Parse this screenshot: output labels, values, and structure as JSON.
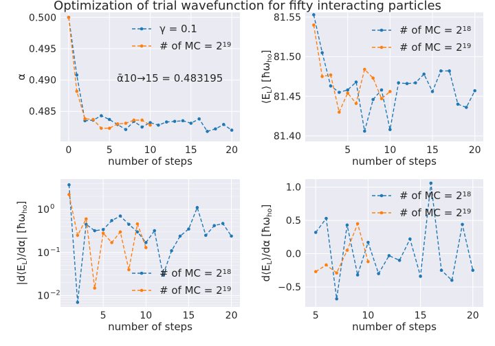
{
  "figure": {
    "title": "Optimization of trial wavefunction for fifty interacting particles",
    "colors": {
      "background": "#eaeaf2",
      "grid": "#ffffff",
      "text": "#262626",
      "blue": "#1f77b4",
      "orange": "#ff7f0e"
    }
  },
  "chart_data": [
    {
      "type": "line",
      "title": "",
      "xlabel": "number of steps",
      "ylabel": "α",
      "xlim": [
        -1,
        21
      ],
      "ylim": [
        0.4802,
        0.5008
      ],
      "xticks": [
        0,
        5,
        10,
        15,
        20
      ],
      "yticks": [
        0.48,
        0.485,
        0.49,
        0.495,
        0.5
      ],
      "ytick_labels": [
        "",
        "0.485",
        "0.490",
        "0.495",
        "0.500"
      ],
      "annotation": "ᾱ10→15 = 0.483195",
      "legend_position": "top-right",
      "series": [
        {
          "name": "γ = 0.1",
          "color": "#1f77b4",
          "x": [
            0,
            1,
            2,
            3,
            4,
            5,
            6,
            7,
            8,
            9,
            10,
            11,
            12,
            13,
            14,
            15,
            16,
            17,
            18,
            19,
            20
          ],
          "y": [
            0.5,
            0.4908,
            0.4835,
            0.4836,
            0.4843,
            0.4837,
            0.4829,
            0.4821,
            0.4834,
            0.4825,
            0.4832,
            0.4828,
            0.4833,
            0.4834,
            0.4835,
            0.4831,
            0.4838,
            0.4818,
            0.4822,
            0.4829,
            0.482
          ]
        },
        {
          "name": "# of MC = 2^19",
          "color": "#ff7f0e",
          "x": [
            0,
            1,
            2,
            3,
            4,
            5,
            6,
            7,
            8,
            9,
            10
          ],
          "y": [
            0.5,
            0.4882,
            0.4838,
            0.4837,
            0.4823,
            0.4823,
            0.483,
            0.4831,
            0.4836,
            0.4836,
            0.4828
          ]
        }
      ]
    },
    {
      "type": "line",
      "title": "",
      "xlabel": "number of steps",
      "ylabel": "⟨E_L⟩ [ħω_ho]",
      "xlim": [
        0,
        21
      ],
      "ylim": [
        81.393,
        81.556
      ],
      "xticks": [
        5,
        10,
        15,
        20
      ],
      "yticks": [
        81.4,
        81.45,
        81.5,
        81.55
      ],
      "ytick_labels": [
        "81.40",
        "81.45",
        "81.50",
        "81.55"
      ],
      "legend_position": "top-right",
      "series": [
        {
          "name": "# of MC = 2^18",
          "color": "#1f77b4",
          "x": [
            1,
            2,
            3,
            4,
            5,
            6,
            7,
            8,
            9,
            10,
            11,
            12,
            13,
            14,
            15,
            16,
            17,
            18,
            19,
            20
          ],
          "y": [
            81.553,
            81.505,
            81.463,
            81.455,
            81.458,
            81.468,
            81.406,
            81.446,
            81.458,
            81.408,
            81.467,
            81.466,
            81.467,
            81.478,
            81.456,
            81.482,
            81.482,
            81.44,
            81.436,
            81.457
          ]
        },
        {
          "name": "# of MC = 2^19",
          "color": "#ff7f0e",
          "x": [
            1,
            2,
            3,
            4,
            5,
            6,
            7,
            8,
            9,
            10
          ],
          "y": [
            81.54,
            81.475,
            81.477,
            81.43,
            81.454,
            81.441,
            81.484,
            81.473,
            81.447,
            81.456
          ]
        }
      ]
    },
    {
      "type": "line",
      "title": "",
      "xlabel": "number of steps",
      "ylabel": "|d⟨E_L⟩/dα| [ħω_ho]",
      "yscale": "log",
      "xlim": [
        0,
        21
      ],
      "ylim": [
        0.0055,
        5
      ],
      "xticks": [
        5,
        10,
        15,
        20
      ],
      "yticks": [
        0.01,
        0.1,
        1
      ],
      "ytick_labels": [
        "10",
        "10",
        "10"
      ],
      "ytick_exponents": [
        "−2",
        "−1",
        "0"
      ],
      "legend_position": "bottom-right",
      "series": [
        {
          "name": "# of MC = 2^18",
          "color": "#1f77b4",
          "x": [
            1,
            2,
            3,
            4,
            5,
            6,
            7,
            8,
            9,
            10,
            11,
            12,
            13,
            14,
            15,
            16,
            17,
            18,
            19,
            20
          ],
          "y": [
            3.7,
            0.007,
            0.45,
            0.32,
            0.34,
            0.55,
            0.7,
            0.45,
            0.3,
            0.17,
            0.32,
            0.03,
            0.11,
            0.24,
            0.35,
            1.1,
            0.25,
            0.42,
            0.47,
            0.24
          ]
        },
        {
          "name": "# of MC = 2^19",
          "color": "#ff7f0e",
          "x": [
            1,
            2,
            3,
            4,
            5,
            6,
            7,
            8,
            9,
            10
          ],
          "y": [
            2.2,
            0.25,
            0.6,
            0.015,
            0.28,
            0.17,
            0.3,
            0.04,
            0.46,
            0.13
          ]
        }
      ]
    },
    {
      "type": "line",
      "title": "",
      "xlabel": "number of steps",
      "ylabel": "d⟨E_L⟩/dα [ħω_ho]",
      "xlim": [
        4,
        21
      ],
      "ylim": [
        -0.8,
        1.12
      ],
      "xticks": [
        5,
        10,
        15,
        20
      ],
      "yticks": [
        -0.5,
        0.0,
        0.5,
        1.0
      ],
      "ytick_labels": [
        "−0.5",
        "0.0",
        "0.5",
        "1.0"
      ],
      "legend_position": "top-right",
      "series": [
        {
          "name": "# of MC = 2^18",
          "color": "#1f77b4",
          "x": [
            5,
            6,
            7,
            8,
            9,
            10,
            11,
            12,
            13,
            14,
            15,
            16,
            17,
            18,
            19,
            20
          ],
          "y": [
            0.32,
            0.53,
            -0.68,
            0.43,
            -0.32,
            0.17,
            -0.3,
            -0.03,
            -0.1,
            0.22,
            -0.34,
            1.06,
            -0.25,
            -0.4,
            0.44,
            -0.25
          ]
        },
        {
          "name": "# of MC = 2^19",
          "color": "#ff7f0e",
          "x": [
            5,
            6,
            7,
            8,
            9,
            10
          ],
          "y": [
            -0.27,
            -0.17,
            -0.29,
            0.05,
            0.45,
            -0.12
          ]
        }
      ]
    }
  ]
}
